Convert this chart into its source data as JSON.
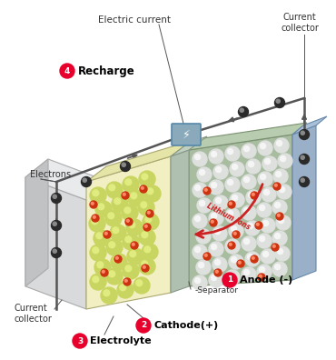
{
  "bg_color": "#ffffff",
  "labels": {
    "electric_current": "Electric current",
    "current_collector_top": "Current\ncollector",
    "recharge_num": "4",
    "recharge": "Recharge",
    "electrons": "Electrons",
    "anode_num": "1",
    "anode": "Anode (-)",
    "separator": "Separator",
    "cathode_num": "2",
    "cathode": "Cathode(+)",
    "electrolyte_num": "3",
    "electrolyte": "Electrolyte",
    "lithium_ions": "Lithium ions",
    "current_collector_bottom": "Current\ncollector"
  },
  "colors": {
    "red_circle": "#e8002d",
    "white": "#ffffff",
    "black": "#000000",
    "wire": "#555555",
    "orange_red": "#cc3311",
    "dark_gray": "#444444",
    "arrow_red": "#cc2222",
    "green_ball": "#c8d560",
    "green_ball_hi": "#e0ec80",
    "white_ball": "#dde0dd",
    "white_ball_hi": "#f5f5f5",
    "cc_left_face": "#d8dadc",
    "cc_left_edge": "#aaaaaa",
    "cc_left_top": "#e8eaec",
    "cathode_face": "#f0eecc",
    "cathode_top": "#e8e8b8",
    "cathode_edge": "#aaa880",
    "sep_face": "#b8c8b8",
    "sep_top": "#c8d8c8",
    "sep_edge": "#889988",
    "anode_face": "#a8bca0",
    "anode_top": "#b8ccb0",
    "anode_edge": "#7a9070",
    "rcc_face": "#9ab0c0",
    "rcc_top": "#aac0d0",
    "rcc_edge": "#6688aa",
    "batt_face": "#8aaabb",
    "batt_edge": "#5588aa"
  }
}
